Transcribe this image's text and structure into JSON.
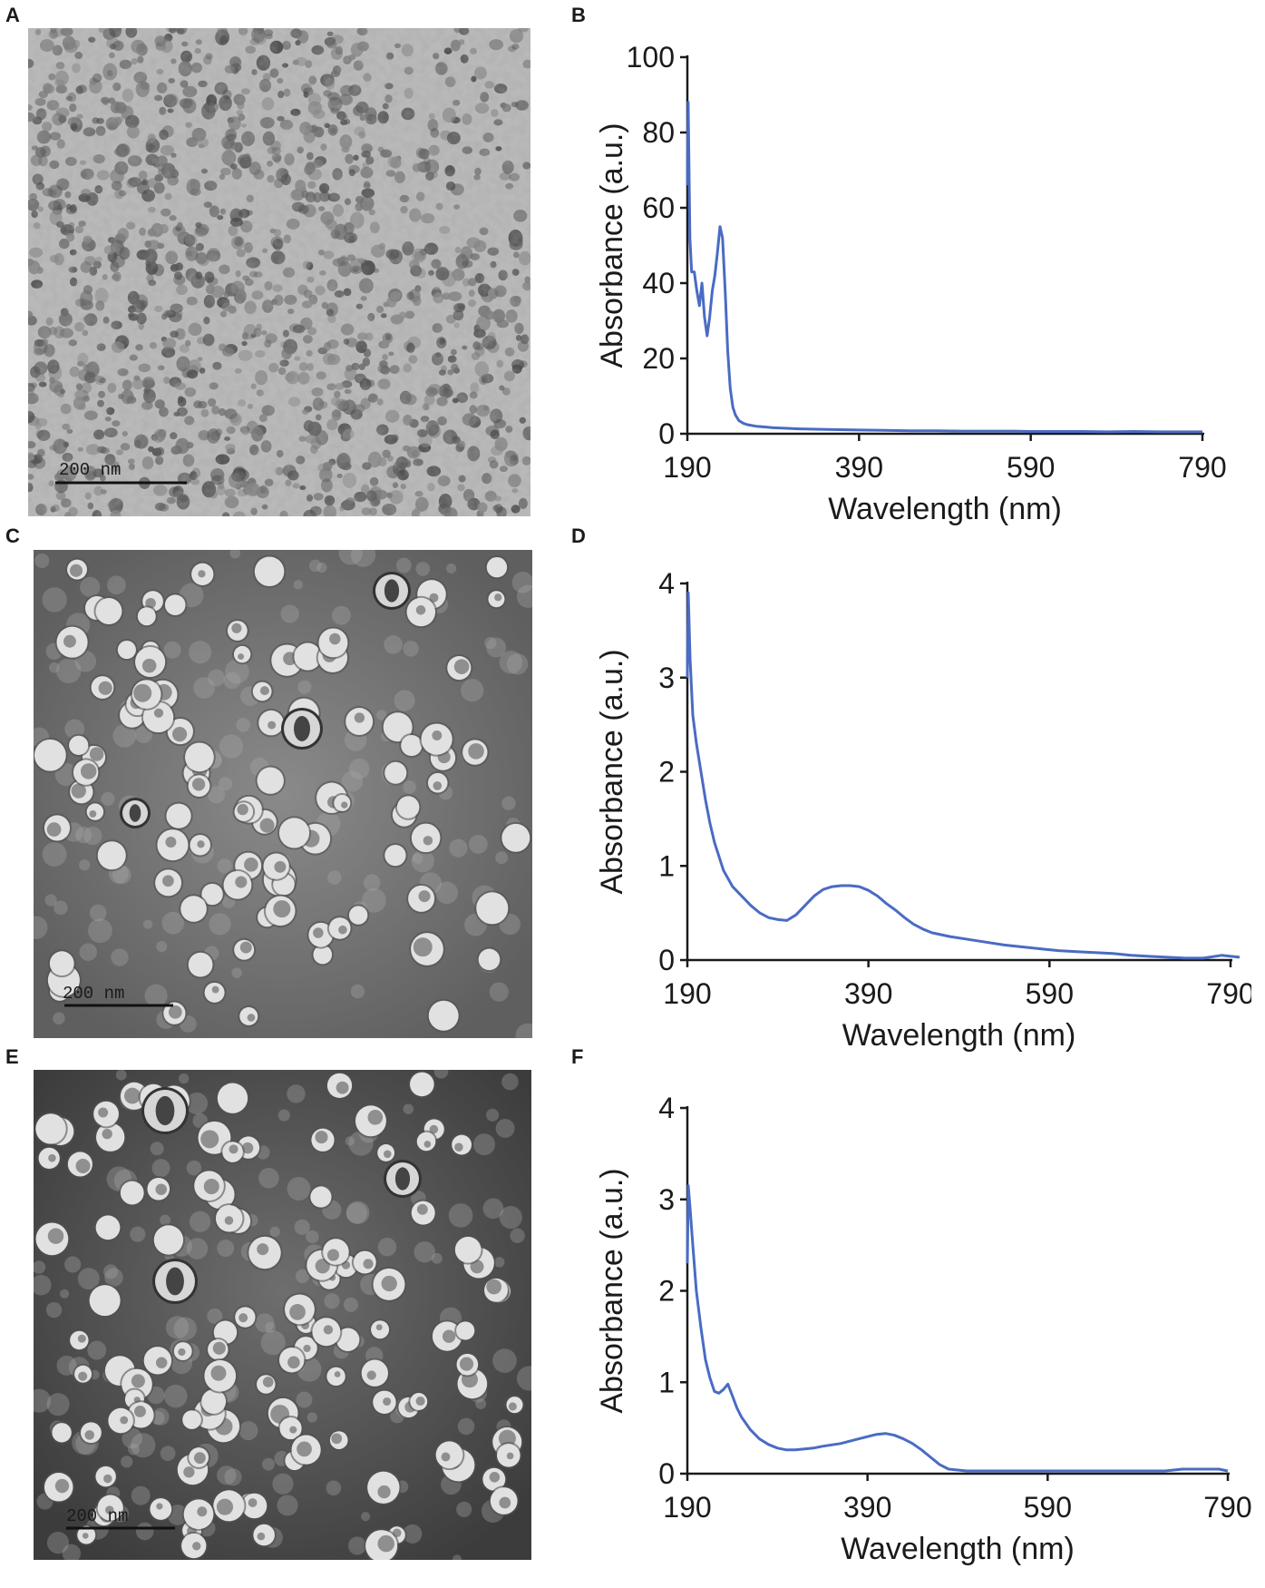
{
  "panels": {
    "A": {
      "letter": "A",
      "scale_label": "200 nm"
    },
    "B": {
      "letter": "B"
    },
    "C": {
      "letter": "C",
      "scale_label": "200 nm"
    },
    "D": {
      "letter": "D"
    },
    "E": {
      "letter": "E",
      "scale_label": "200 nm"
    },
    "F": {
      "letter": "F"
    }
  },
  "colors": {
    "line": "#4a6bc4",
    "axis": "#1a1a1a"
  },
  "chart_data": [
    {
      "panel": "B",
      "type": "line",
      "xlabel": "Wavelength (nm)",
      "ylabel": "Absorbance (a.u.)",
      "xlim": [
        190,
        790
      ],
      "ylim": [
        0,
        100
      ],
      "xticks": [
        190,
        390,
        590,
        790
      ],
      "yticks": [
        0,
        20,
        40,
        60,
        80,
        100
      ],
      "grid": false,
      "series": [
        {
          "x": [
            190,
            191,
            193,
            195,
            198,
            201,
            204,
            207,
            210,
            213,
            216,
            219,
            222,
            225,
            228,
            231,
            234,
            237,
            240,
            243,
            246,
            250,
            255,
            260,
            265,
            270,
            280,
            290,
            300,
            320,
            340,
            360,
            390,
            420,
            450,
            480,
            510,
            540,
            570,
            590,
            620,
            650,
            680,
            710,
            740,
            770,
            790
          ],
          "y": [
            66,
            88,
            52,
            43,
            43,
            38,
            34,
            40,
            31,
            26,
            31,
            38,
            42,
            48,
            55,
            52,
            38,
            22,
            12,
            7,
            5,
            3.5,
            2.8,
            2.4,
            2.2,
            2,
            1.8,
            1.6,
            1.5,
            1.3,
            1.2,
            1.1,
            1,
            0.9,
            0.8,
            0.8,
            0.7,
            0.7,
            0.7,
            0.6,
            0.6,
            0.6,
            0.5,
            0.6,
            0.5,
            0.5,
            0.5
          ]
        }
      ]
    },
    {
      "panel": "D",
      "type": "line",
      "xlabel": "Wavelength (nm)",
      "ylabel": "Absorbance (a.u.)",
      "xlim": [
        190,
        790
      ],
      "ylim": [
        0,
        4
      ],
      "xticks": [
        190,
        390,
        590,
        790
      ],
      "yticks": [
        0,
        1,
        2,
        3,
        4
      ],
      "grid": false,
      "series": [
        {
          "x": [
            190,
            191,
            193,
            196,
            200,
            205,
            210,
            215,
            220,
            230,
            240,
            250,
            260,
            270,
            280,
            290,
            300,
            310,
            320,
            330,
            340,
            350,
            360,
            370,
            380,
            390,
            400,
            410,
            420,
            430,
            440,
            450,
            460,
            480,
            500,
            520,
            540,
            560,
            580,
            600,
            620,
            640,
            660,
            680,
            700,
            720,
            740,
            760,
            780,
            800
          ],
          "y": [
            3.0,
            3.9,
            3.2,
            2.6,
            2.3,
            2.0,
            1.7,
            1.45,
            1.25,
            0.95,
            0.78,
            0.68,
            0.58,
            0.5,
            0.45,
            0.43,
            0.42,
            0.48,
            0.58,
            0.68,
            0.75,
            0.78,
            0.79,
            0.79,
            0.78,
            0.74,
            0.68,
            0.6,
            0.53,
            0.45,
            0.38,
            0.33,
            0.29,
            0.25,
            0.22,
            0.19,
            0.16,
            0.14,
            0.12,
            0.1,
            0.09,
            0.08,
            0.07,
            0.05,
            0.04,
            0.03,
            0.02,
            0.02,
            0.05,
            0.03
          ]
        }
      ]
    },
    {
      "panel": "F",
      "type": "line",
      "xlabel": "Wavelength (nm)",
      "ylabel": "Absorbance (a.u.)",
      "xlim": [
        190,
        790
      ],
      "ylim": [
        0,
        4
      ],
      "xticks": [
        190,
        390,
        590,
        790
      ],
      "yticks": [
        0,
        1,
        2,
        3,
        4
      ],
      "grid": false,
      "series": [
        {
          "x": [
            190,
            191,
            193,
            196,
            200,
            205,
            210,
            215,
            220,
            225,
            230,
            235,
            240,
            245,
            250,
            255,
            260,
            270,
            280,
            290,
            300,
            310,
            320,
            330,
            340,
            360,
            380,
            400,
            410,
            420,
            430,
            440,
            450,
            460,
            470,
            480,
            490,
            500,
            510,
            520,
            540,
            560,
            580,
            600,
            620,
            640,
            660,
            680,
            700,
            720,
            740,
            760,
            780,
            790
          ],
          "y": [
            2.3,
            3.15,
            2.9,
            2.5,
            2.0,
            1.6,
            1.25,
            1.05,
            0.9,
            0.88,
            0.92,
            0.98,
            0.85,
            0.72,
            0.62,
            0.55,
            0.48,
            0.38,
            0.32,
            0.28,
            0.26,
            0.26,
            0.27,
            0.28,
            0.3,
            0.33,
            0.38,
            0.43,
            0.44,
            0.42,
            0.38,
            0.33,
            0.26,
            0.18,
            0.1,
            0.05,
            0.04,
            0.03,
            0.03,
            0.03,
            0.03,
            0.03,
            0.03,
            0.03,
            0.03,
            0.03,
            0.03,
            0.03,
            0.03,
            0.03,
            0.05,
            0.05,
            0.05,
            0.03
          ]
        }
      ]
    }
  ]
}
